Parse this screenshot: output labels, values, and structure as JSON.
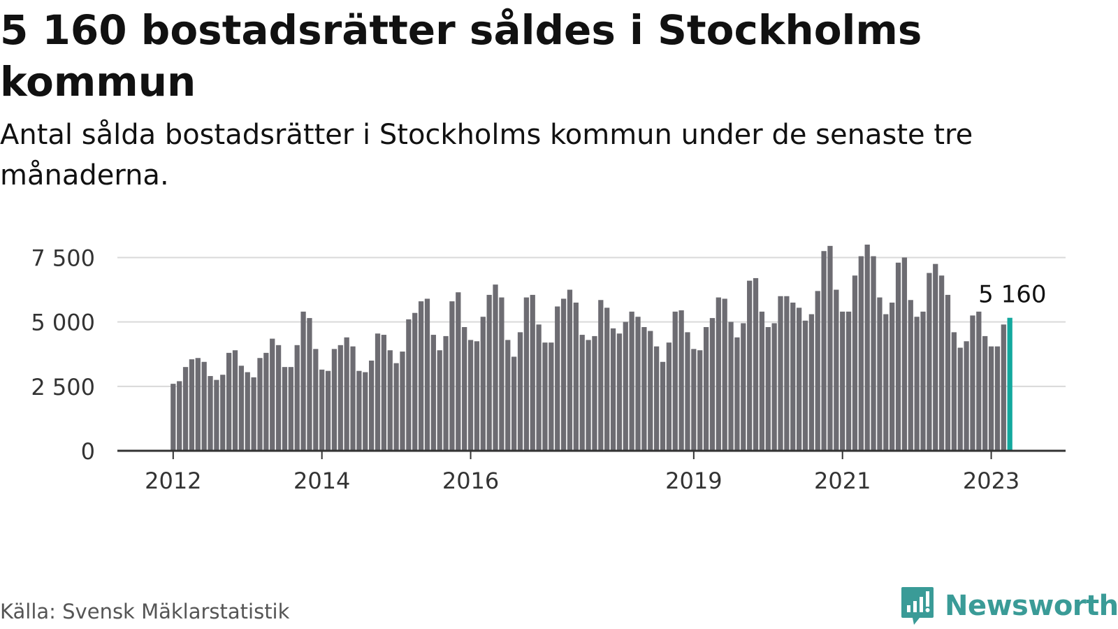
{
  "title": "5 160 bostadsrätter såldes i Stockholms kommun",
  "subtitle": "Antal sålda bostadsrätter i Stockholms kommun under de senaste tre månaderna.",
  "source": "Källa: Svensk Mäklarstatistik",
  "brand": {
    "name": "Newsworthy",
    "icon": "newsworthy-logo-icon"
  },
  "colors": {
    "bar": "#6d6c72",
    "highlight": "#13a89e",
    "grid": "#d9d9d9",
    "axis": "#333333",
    "brand": "#3a9b97"
  },
  "chart_data": {
    "type": "bar",
    "title": "5 160 bostadsrätter såldes i Stockholms kommun",
    "xlabel": "",
    "ylabel": "",
    "ylim": [
      0,
      8000
    ],
    "x_range": [
      2011.25,
      2024.0
    ],
    "yticks": [
      {
        "value": 0,
        "label": "0"
      },
      {
        "value": 2500,
        "label": "2 500"
      },
      {
        "value": 5000,
        "label": "5 000"
      },
      {
        "value": 7500,
        "label": "7 500"
      }
    ],
    "xticks": [
      {
        "value": 2012.0,
        "label": "2012"
      },
      {
        "value": 2014.0,
        "label": "2014"
      },
      {
        "value": 2016.0,
        "label": "2016"
      },
      {
        "value": 2019.0,
        "label": "2019"
      },
      {
        "value": 2021.0,
        "label": "2021"
      },
      {
        "value": 2023.0,
        "label": "2023"
      }
    ],
    "start": {
      "year": 2012,
      "month": 1
    },
    "frequency": "monthly",
    "grid": true,
    "highlight_index": 135,
    "highlight_label": "5 160",
    "values": [
      2600,
      2700,
      3250,
      3550,
      3600,
      3450,
      2900,
      2750,
      2950,
      3800,
      3900,
      3300,
      3050,
      2850,
      3600,
      3800,
      4350,
      4100,
      3250,
      3250,
      4100,
      5400,
      5150,
      3950,
      3150,
      3100,
      3950,
      4100,
      4400,
      4050,
      3100,
      3050,
      3500,
      4550,
      4500,
      3900,
      3400,
      3850,
      5100,
      5350,
      5800,
      5900,
      4500,
      3900,
      4450,
      5800,
      6150,
      4800,
      4300,
      4250,
      5200,
      6050,
      6450,
      5950,
      4300,
      3650,
      4600,
      5950,
      6050,
      4900,
      4200,
      4200,
      5600,
      5900,
      6250,
      5750,
      4500,
      4300,
      4450,
      5850,
      5550,
      4750,
      4550,
      5000,
      5400,
      5200,
      4800,
      4650,
      4050,
      3450,
      4200,
      5400,
      5450,
      4600,
      3950,
      3900,
      4800,
      5150,
      5950,
      5900,
      5000,
      4400,
      4950,
      6600,
      6700,
      5400,
      4800,
      4950,
      6000,
      6000,
      5750,
      5550,
      5050,
      5300,
      6200,
      7750,
      7950,
      6250,
      5400,
      5400,
      6800,
      7550,
      8000,
      7550,
      5950,
      5300,
      5750,
      7300,
      7500,
      5850,
      5200,
      5400,
      6900,
      7250,
      6800,
      6050,
      4600,
      4000,
      4250,
      5250,
      5400,
      4450,
      4050,
      4050,
      4900,
      5160
    ]
  }
}
